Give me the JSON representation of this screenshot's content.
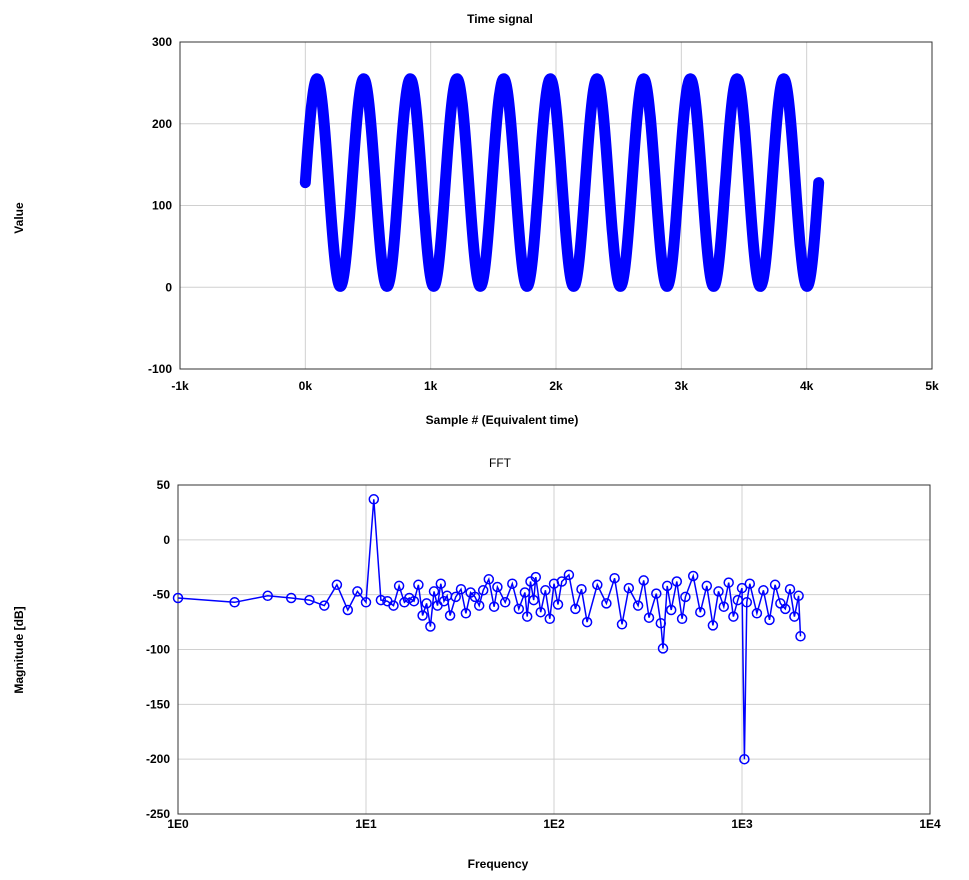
{
  "chart_data": [
    {
      "type": "scatter",
      "title": "Time signal",
      "xlabel": "Sample # (Equivalent time)",
      "ylabel": "Value",
      "xlim": [
        -1000,
        5000
      ],
      "ylim": [
        -100,
        300
      ],
      "xticks": [
        "-1k",
        "0k",
        "1k",
        "2k",
        "3k",
        "4k",
        "5k"
      ],
      "yticks": [
        "300",
        "200",
        "100",
        "0",
        "-100"
      ],
      "grid": true,
      "series": [
        {
          "color": "#0000ff",
          "kind": "sine",
          "samples": 4096,
          "offset": 128,
          "amplitude": 127,
          "cycles": 11,
          "start_value": 128
        }
      ]
    },
    {
      "type": "line",
      "title": "FFT",
      "xlabel": "Frequency",
      "ylabel": "Magnitude [dB]",
      "xscale": "log",
      "xlim": [
        1,
        10000
      ],
      "ylim": [
        -250,
        50
      ],
      "xticks": [
        "1E0",
        "1E1",
        "1E2",
        "1E3",
        "1E4"
      ],
      "yticks": [
        "50",
        "0",
        "-50",
        "-100",
        "-150",
        "-200",
        "-250"
      ],
      "grid": true,
      "series": [
        {
          "color": "#0000ff",
          "marker": "circle-open",
          "points": [
            [
              1,
              -53
            ],
            [
              2,
              -57
            ],
            [
              3,
              -51
            ],
            [
              4,
              -53
            ],
            [
              5,
              -55
            ],
            [
              6,
              -60
            ],
            [
              7,
              -41
            ],
            [
              8,
              -64
            ],
            [
              9,
              -47
            ],
            [
              10,
              -57
            ],
            [
              11,
              37
            ],
            [
              12,
              -55
            ],
            [
              13,
              -56
            ],
            [
              14,
              -60
            ],
            [
              15,
              -42
            ],
            [
              16,
              -57
            ],
            [
              17,
              -53
            ],
            [
              18,
              -56
            ],
            [
              19,
              -41
            ],
            [
              20,
              -69
            ],
            [
              21,
              -58
            ],
            [
              22,
              -79
            ],
            [
              23,
              -47
            ],
            [
              24,
              -60
            ],
            [
              25,
              -40
            ],
            [
              26,
              -56
            ],
            [
              27,
              -51
            ],
            [
              28,
              -69
            ],
            [
              30,
              -52
            ],
            [
              32,
              -45
            ],
            [
              34,
              -67
            ],
            [
              36,
              -48
            ],
            [
              38,
              -52
            ],
            [
              40,
              -60
            ],
            [
              42,
              -46
            ],
            [
              45,
              -36
            ],
            [
              48,
              -61
            ],
            [
              50,
              -43
            ],
            [
              55,
              -57
            ],
            [
              60,
              -40
            ],
            [
              65,
              -63
            ],
            [
              70,
              -48
            ],
            [
              72,
              -70
            ],
            [
              75,
              -38
            ],
            [
              78,
              -55
            ],
            [
              80,
              -34
            ],
            [
              85,
              -66
            ],
            [
              90,
              -46
            ],
            [
              95,
              -72
            ],
            [
              100,
              -40
            ],
            [
              105,
              -59
            ],
            [
              110,
              -38
            ],
            [
              120,
              -32
            ],
            [
              130,
              -63
            ],
            [
              140,
              -45
            ],
            [
              150,
              -75
            ],
            [
              170,
              -41
            ],
            [
              190,
              -58
            ],
            [
              210,
              -35
            ],
            [
              230,
              -77
            ],
            [
              250,
              -44
            ],
            [
              280,
              -60
            ],
            [
              300,
              -37
            ],
            [
              320,
              -71
            ],
            [
              350,
              -49
            ],
            [
              370,
              -76
            ],
            [
              380,
              -99
            ],
            [
              400,
              -42
            ],
            [
              420,
              -64
            ],
            [
              450,
              -38
            ],
            [
              480,
              -72
            ],
            [
              500,
              -52
            ],
            [
              550,
              -33
            ],
            [
              600,
              -66
            ],
            [
              650,
              -42
            ],
            [
              700,
              -78
            ],
            [
              750,
              -47
            ],
            [
              800,
              -61
            ],
            [
              850,
              -39
            ],
            [
              900,
              -70
            ],
            [
              950,
              -55
            ],
            [
              1000,
              -44
            ],
            [
              1030,
              -200
            ],
            [
              1060,
              -57
            ],
            [
              1100,
              -40
            ],
            [
              1200,
              -67
            ],
            [
              1300,
              -46
            ],
            [
              1400,
              -73
            ],
            [
              1500,
              -41
            ],
            [
              1600,
              -58
            ],
            [
              1700,
              -63
            ],
            [
              1800,
              -45
            ],
            [
              1900,
              -70
            ],
            [
              2000,
              -51
            ],
            [
              2048,
              -88
            ]
          ]
        }
      ]
    }
  ]
}
